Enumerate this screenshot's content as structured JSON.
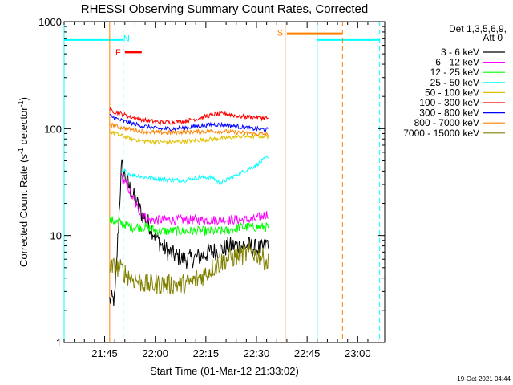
{
  "chart_data": {
    "type": "line",
    "title": "RHESSI Observing Summary Count Rates, Corrected",
    "xlabel": "Start Time (01-Mar-12 21:33:02)",
    "ylabel": "Corrected Count Rate (s",
    "ylabel_sup1": "-1",
    "ylabel_mid": " detector",
    "ylabel_sup2": "-1",
    "ylabel_end": ")",
    "x_range_min": [
      0,
      95
    ],
    "y_log_range": [
      1,
      1000
    ],
    "x_ticks": [
      {
        "min": 12,
        "label": "21:45"
      },
      {
        "min": 27,
        "label": "22:00"
      },
      {
        "min": 42,
        "label": "22:15"
      },
      {
        "min": 57,
        "label": "22:30"
      },
      {
        "min": 72,
        "label": "22:45"
      },
      {
        "min": 87,
        "label": "23:00"
      }
    ],
    "y_ticks": [
      {
        "value": 1,
        "label": "1"
      },
      {
        "value": 10,
        "label": "10"
      },
      {
        "value": 100,
        "label": "100"
      },
      {
        "value": 1000,
        "label": "1000"
      }
    ],
    "legend_header": [
      "Det 1,3,5,6,9,",
      "Att 0"
    ],
    "legend_placement": "right",
    "footer": "19-Oct-2021 04:44",
    "series": [
      {
        "name": "3 - 6 keV",
        "color": "#000000",
        "x": [
          13.5,
          15,
          17,
          19,
          21,
          23,
          25,
          27,
          29,
          31,
          33,
          35,
          37,
          39,
          41,
          43,
          45,
          47,
          49,
          51,
          53,
          55,
          57,
          59,
          60.5
        ],
        "y": [
          2.5,
          2.5,
          45,
          30,
          22,
          16,
          13,
          10,
          8,
          7,
          6.5,
          6,
          6,
          6.2,
          6.5,
          7,
          7.2,
          7.5,
          8,
          8,
          8,
          8,
          7.5,
          7.5,
          9
        ]
      },
      {
        "name": "6 - 12 keV",
        "color": "#ff00ff",
        "x": [
          17,
          19,
          21,
          23,
          25,
          28,
          32,
          36,
          40,
          44,
          48,
          52,
          56,
          58,
          60.5
        ],
        "y": [
          35,
          28,
          20,
          16,
          14,
          14,
          14,
          14,
          14,
          14,
          14,
          14,
          14,
          15,
          16
        ]
      },
      {
        "name": "12 - 25 keV",
        "color": "#00ff00",
        "x": [
          13.5,
          17,
          20,
          24,
          28,
          32,
          36,
          40,
          44,
          48,
          52,
          56,
          58,
          60.5
        ],
        "y": [
          14,
          13,
          12,
          12,
          11,
          11,
          11,
          11,
          11,
          11,
          12,
          12,
          12,
          12
        ]
      },
      {
        "name": "25 - 50 keV",
        "color": "#00ffff",
        "x": [
          17,
          18,
          20,
          24,
          28,
          32,
          36,
          40,
          44,
          46,
          48,
          52,
          56,
          58,
          60.5
        ],
        "y": [
          38,
          40,
          37,
          35,
          34,
          33,
          33,
          35,
          35,
          31,
          33,
          38,
          44,
          48,
          55
        ]
      },
      {
        "name": "50 - 100 keV",
        "color": "#e0c000",
        "x": [
          13.5,
          16,
          20,
          24,
          28,
          32,
          36,
          40,
          44,
          48,
          52,
          56,
          60.5
        ],
        "y": [
          95,
          88,
          80,
          76,
          75,
          75,
          76,
          78,
          80,
          82,
          84,
          85,
          85
        ]
      },
      {
        "name": "100 - 300 keV",
        "color": "#ff0000",
        "x": [
          13.5,
          16,
          20,
          24,
          28,
          32,
          36,
          40,
          44,
          48,
          52,
          56,
          60.5
        ],
        "y": [
          150,
          140,
          128,
          120,
          115,
          115,
          118,
          125,
          135,
          138,
          130,
          128,
          125
        ]
      },
      {
        "name": "300 - 800 keV",
        "color": "#0000ff",
        "x": [
          13.5,
          16,
          20,
          24,
          28,
          32,
          36,
          40,
          44,
          48,
          52,
          56,
          60.5
        ],
        "y": [
          132,
          122,
          112,
          105,
          100,
          100,
          102,
          106,
          110,
          108,
          104,
          100,
          98
        ]
      },
      {
        "name": "800 - 7000 keV",
        "color": "#ff8000",
        "x": [
          13.5,
          16,
          20,
          24,
          28,
          32,
          36,
          40,
          44,
          48,
          52,
          56,
          60.5
        ],
        "y": [
          110,
          104,
          98,
          94,
          92,
          92,
          93,
          94,
          95,
          94,
          92,
          90,
          88
        ]
      },
      {
        "name": "7000 - 15000 keV",
        "color": "#808000",
        "x": [
          13.5,
          16,
          18,
          20,
          24,
          28,
          32,
          36,
          40,
          44,
          48,
          52,
          56,
          58,
          60.5
        ],
        "y": [
          5,
          5,
          4.5,
          4,
          3.5,
          3.5,
          3.5,
          3.5,
          4,
          5,
          6,
          6.5,
          7,
          6.5,
          5.5
        ]
      }
    ],
    "annotations": [
      {
        "type": "hline",
        "color": "#00ffff",
        "x0": 0,
        "x1": 17.5,
        "y": 680
      },
      {
        "type": "vline",
        "color": "#00ffff",
        "x": 0,
        "style": "solid"
      },
      {
        "type": "vline",
        "color": "#00ffff",
        "x": 17.5,
        "style": "dashed"
      },
      {
        "type": "hline",
        "color": "#00ffff",
        "x0": 75,
        "x1": 93.5,
        "y": 680
      },
      {
        "type": "vline",
        "color": "#00ffff",
        "x": 75,
        "style": "solid"
      },
      {
        "type": "vline",
        "color": "#00ffff",
        "x": 93.5,
        "style": "dashed"
      },
      {
        "type": "vline",
        "color": "#ff8000",
        "x": 13.5,
        "style": "solid"
      },
      {
        "type": "vline",
        "color": "#ff8000",
        "x": 65.5,
        "style": "solid"
      },
      {
        "type": "hline",
        "color": "#ff8000",
        "x0": 66,
        "x1": 82.5,
        "y": 770
      },
      {
        "type": "vline",
        "color": "#ff8000",
        "x": 82.5,
        "style": "dashed"
      },
      {
        "type": "hline",
        "color": "#ff0000",
        "x0": 18,
        "x1": 23,
        "y": 520
      }
    ],
    "markers": [
      {
        "label": "N",
        "color": "#00ffff",
        "x": 18.5,
        "y": 700
      },
      {
        "label": "F",
        "color": "#ff0000",
        "x": 16,
        "y": 520
      },
      {
        "label": "S",
        "color": "#ff8000",
        "x": 64,
        "y": 790
      }
    ]
  }
}
